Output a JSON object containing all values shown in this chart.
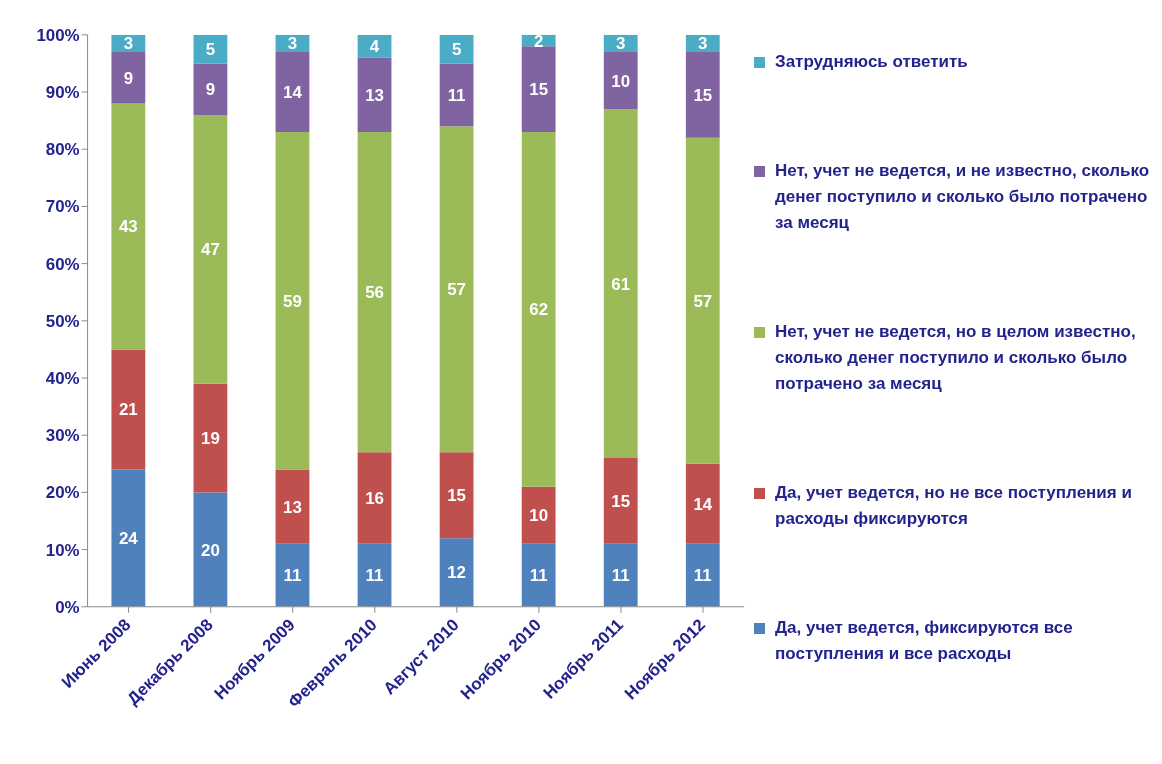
{
  "chart_data": {
    "type": "bar",
    "stacked": true,
    "data_labels": true,
    "legend": "right",
    "grid": false,
    "categories": [
      "Июнь 2008",
      "Декабрь 2008",
      "Ноябрь 2009",
      "Февраль 2010",
      "Август 2010",
      "Ноябрь 2010",
      "Ноябрь 2011",
      "Ноябрь 2012"
    ],
    "series": [
      {
        "name": "Да, учет ведется, фиксируются все поступления и все расходы",
        "color": "#4f81bd",
        "values": [
          24,
          20,
          11,
          11,
          12,
          11,
          11,
          11
        ]
      },
      {
        "name": "Да, учет ведется, но не все поступления и расходы фиксируются",
        "color": "#c0504d",
        "values": [
          21,
          19,
          13,
          16,
          15,
          10,
          15,
          14
        ]
      },
      {
        "name": "Нет, учет не ведется, но в целом известно, сколько денег поступило и сколько было потрачено за месяц",
        "color": "#9bbb59",
        "values": [
          43,
          47,
          59,
          56,
          57,
          62,
          61,
          57
        ]
      },
      {
        "name": "Нет, учет не ведется, и не известно, сколько денег поступило и сколько было потрачено за месяц",
        "color": "#8064a2",
        "values": [
          9,
          9,
          14,
          13,
          11,
          15,
          10,
          15
        ]
      },
      {
        "name": "Затрудняюсь ответить",
        "color": "#4bacc6",
        "values": [
          3,
          5,
          3,
          4,
          5,
          2,
          3,
          3
        ]
      }
    ],
    "ylim": [
      0,
      100
    ],
    "yticks": [
      {
        "value": 0,
        "label": "0%"
      },
      {
        "value": 10,
        "label": "10%"
      },
      {
        "value": 20,
        "label": "20%"
      },
      {
        "value": 30,
        "label": "30%"
      },
      {
        "value": 40,
        "label": "40%"
      },
      {
        "value": 50,
        "label": "50%"
      },
      {
        "value": 60,
        "label": "60%"
      },
      {
        "value": 70,
        "label": "70%"
      },
      {
        "value": 80,
        "label": "80%"
      },
      {
        "value": 90,
        "label": "90%"
      },
      {
        "value": 100,
        "label": "100%"
      }
    ]
  }
}
